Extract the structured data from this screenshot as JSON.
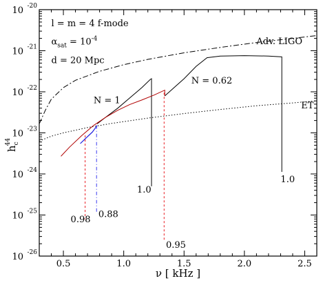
{
  "chart_data": {
    "type": "line",
    "title": "",
    "xlabel": "ν [ kHz ]",
    "ylabel_base": "h",
    "ylabel_sub": "c",
    "ylabel_sup": "44",
    "xlim": [
      0.3,
      2.6
    ],
    "ylim_exp": [
      -26,
      -20
    ],
    "log_y": true,
    "grid": false,
    "x_ticks": [
      {
        "value": 0.5,
        "label": "0.5"
      },
      {
        "value": 1.0,
        "label": "1.0"
      },
      {
        "value": 1.5,
        "label": "1.5"
      },
      {
        "value": 2.0,
        "label": "2.0"
      },
      {
        "value": 2.5,
        "label": "2.5"
      }
    ],
    "y_ticks": [
      {
        "exp": -20,
        "base": "10",
        "sup": "-20"
      },
      {
        "exp": -21,
        "base": "10",
        "sup": "-21"
      },
      {
        "exp": -22,
        "base": "10",
        "sup": "-22"
      },
      {
        "exp": -23,
        "base": "10",
        "sup": "-23"
      },
      {
        "exp": -24,
        "base": "10",
        "sup": "-24"
      },
      {
        "exp": -25,
        "base": "10",
        "sup": "-25"
      },
      {
        "exp": -26,
        "base": "10",
        "sup": "-26"
      }
    ],
    "series": [
      {
        "id": "adv-ligo",
        "color": "#000000",
        "dash": "8,3,2,3",
        "width": 1,
        "points": [
          [
            0.3,
            -22.78
          ],
          [
            0.35,
            -22.45
          ],
          [
            0.4,
            -22.18
          ],
          [
            0.5,
            -21.9
          ],
          [
            0.6,
            -21.72
          ],
          [
            0.8,
            -21.5
          ],
          [
            1.0,
            -21.34
          ],
          [
            1.2,
            -21.21
          ],
          [
            1.5,
            -21.05
          ],
          [
            1.8,
            -20.92
          ],
          [
            2.1,
            -20.8
          ],
          [
            2.4,
            -20.7
          ],
          [
            2.6,
            -20.63
          ]
        ]
      },
      {
        "id": "et",
        "color": "#000000",
        "dash": "1.5,2.5",
        "width": 1,
        "points": [
          [
            0.3,
            -23.2
          ],
          [
            0.4,
            -23.08
          ],
          [
            0.5,
            -23.0
          ],
          [
            0.7,
            -22.87
          ],
          [
            0.9,
            -22.77
          ],
          [
            1.2,
            -22.64
          ],
          [
            1.5,
            -22.53
          ],
          [
            1.8,
            -22.43
          ],
          [
            2.1,
            -22.34
          ],
          [
            2.4,
            -22.27
          ],
          [
            2.6,
            -22.22
          ]
        ]
      },
      {
        "id": "n1-black",
        "color": "#000000",
        "dash": "",
        "width": 1,
        "points": [
          [
            0.78,
            -22.78
          ],
          [
            0.85,
            -22.62
          ],
          [
            0.95,
            -22.4
          ],
          [
            1.05,
            -22.15
          ],
          [
            1.15,
            -21.9
          ],
          [
            1.22,
            -21.7
          ],
          [
            1.23,
            -21.68
          ],
          [
            1.23,
            -24.3
          ]
        ]
      },
      {
        "id": "n062-black",
        "color": "#000000",
        "dash": "",
        "width": 1,
        "points": [
          [
            1.34,
            -22.1
          ],
          [
            1.5,
            -21.68
          ],
          [
            1.6,
            -21.38
          ],
          [
            1.69,
            -21.17
          ],
          [
            1.8,
            -21.13
          ],
          [
            2.0,
            -21.12
          ],
          [
            2.2,
            -21.13
          ],
          [
            2.31,
            -21.15
          ],
          [
            2.31,
            -23.95
          ]
        ]
      },
      {
        "id": "n062-red",
        "color": "#b00000",
        "dash": "",
        "width": 1,
        "points": [
          [
            0.48,
            -23.57
          ],
          [
            0.55,
            -23.35
          ],
          [
            0.65,
            -23.07
          ],
          [
            0.75,
            -22.82
          ],
          [
            0.85,
            -22.62
          ],
          [
            0.95,
            -22.45
          ],
          [
            1.05,
            -22.31
          ],
          [
            1.15,
            -22.2
          ],
          [
            1.25,
            -22.08
          ],
          [
            1.34,
            -21.96
          ],
          [
            1.34,
            -22.1
          ]
        ]
      },
      {
        "id": "n1-blue",
        "color": "#1a1adf",
        "dash": "",
        "width": 1.2,
        "points": [
          [
            0.64,
            -23.26
          ],
          [
            0.69,
            -23.12
          ],
          [
            0.74,
            -22.98
          ],
          [
            0.78,
            -22.82
          ]
        ]
      },
      {
        "id": "drop-098",
        "color": "#e8141b",
        "dash": "3,3",
        "width": 1,
        "points": [
          [
            0.68,
            -23.06
          ],
          [
            0.68,
            -25.1
          ]
        ]
      },
      {
        "id": "drop-088",
        "color": "#3c3cf0",
        "dash": "5,3,1,3",
        "width": 1,
        "points": [
          [
            0.775,
            -22.82
          ],
          [
            0.775,
            -24.95
          ]
        ]
      },
      {
        "id": "drop-095",
        "color": "#e8141b",
        "dash": "3,3",
        "width": 1,
        "points": [
          [
            1.335,
            -22.02
          ],
          [
            1.335,
            -25.6
          ]
        ]
      }
    ],
    "annotations": [
      {
        "id": "lm-label",
        "text": "l = m = 4  f-mode",
        "x": 0.4,
        "y": -20.4
      },
      {
        "id": "alpha-label",
        "base": "α",
        "sub": "sat",
        "mid": " = 10",
        "sup": "-4",
        "x": 0.4,
        "y": -20.85
      },
      {
        "id": "d-label",
        "text": "d = 20 Mpc",
        "x": 0.4,
        "y": -21.3
      },
      {
        "id": "adv-ligo-label",
        "text": "Adv. LIGO",
        "x": 2.1,
        "y": -20.84
      },
      {
        "id": "et-label",
        "text": "ET",
        "x": 2.47,
        "y": -22.4
      },
      {
        "id": "n1-label",
        "text": "N = 1",
        "x": 0.75,
        "y": -22.28
      },
      {
        "id": "n062-label",
        "text": "N = 0.62",
        "x": 1.56,
        "y": -21.8
      },
      {
        "id": "val-10a-label",
        "text": "1.0",
        "x": 1.11,
        "y": -24.45
      },
      {
        "id": "val-10b-label",
        "text": "1.0",
        "x": 2.3,
        "y": -24.2
      },
      {
        "id": "val-098-label",
        "text": "0.98",
        "x": 0.56,
        "y": -25.18
      },
      {
        "id": "val-088-label",
        "text": "0.88",
        "x": 0.79,
        "y": -25.05
      },
      {
        "id": "val-095-label",
        "text": "0.95",
        "x": 1.35,
        "y": -25.8
      }
    ]
  }
}
